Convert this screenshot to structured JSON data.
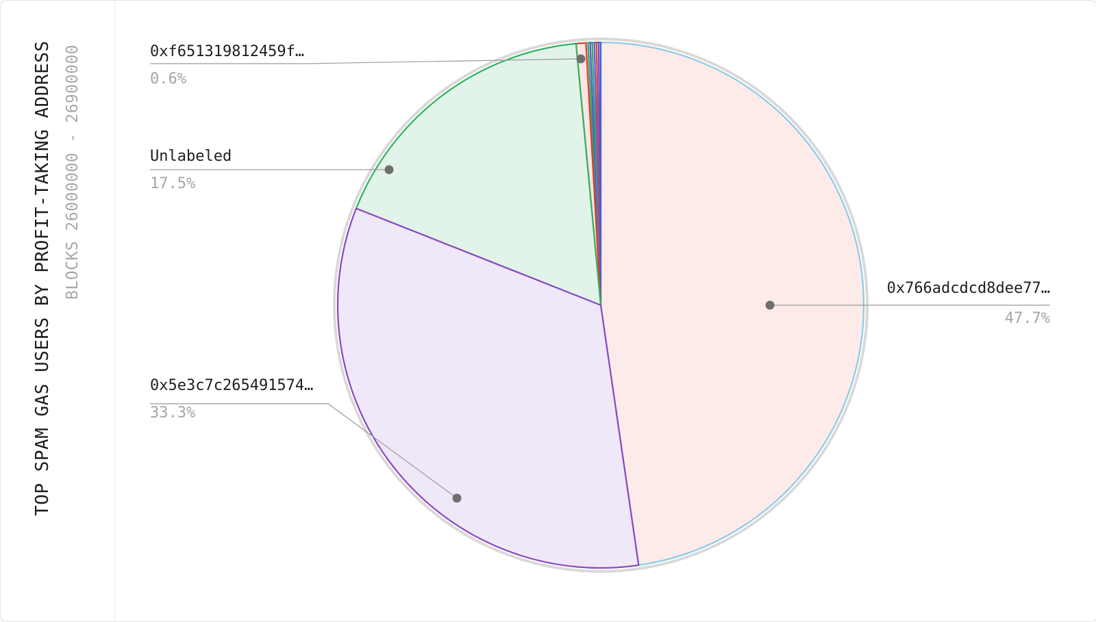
{
  "title": "TOP SPAM GAS USERS BY PROFIT-TAKING ADDRESS",
  "subtitle": "BLOCKS 26000000 - 26900000",
  "chart_data": {
    "type": "pie",
    "title": "TOP SPAM GAS USERS BY PROFIT-TAKING ADDRESS",
    "subtitle": "BLOCKS 26000000 - 26900000",
    "start_angle_deg": 0,
    "direction": "clockwise",
    "legend": "none",
    "slices": [
      {
        "label": "0x766adcdcd8dee77…",
        "pct": 47.7,
        "fill": "#fcebe8",
        "stroke": "#8ecae6"
      },
      {
        "label": "0x5e3c7c265491574…",
        "pct": 33.3,
        "fill": "#efe8f8",
        "stroke": "#8b48c2"
      },
      {
        "label": "Unlabeled",
        "pct": 17.5,
        "fill": "#e2f4e9",
        "stroke": "#2fb45e"
      },
      {
        "label": "0xf651319812459f…",
        "pct": 0.6,
        "fill": "#fbe6e4",
        "stroke": "#e03c31"
      },
      {
        "label": "",
        "pct": 0.13,
        "fill": "#eaf3fb",
        "stroke": "#7fb8e6"
      },
      {
        "label": "",
        "pct": 0.13,
        "fill": "#e7f5ec",
        "stroke": "#35a853"
      },
      {
        "label": "",
        "pct": 0.13,
        "fill": "#e9ecfa",
        "stroke": "#4a5fd0"
      },
      {
        "label": "",
        "pct": 0.13,
        "fill": "#e7f5ec",
        "stroke": "#2fa87e"
      },
      {
        "label": "",
        "pct": 0.13,
        "fill": "#f0eafa",
        "stroke": "#8a4fc8"
      },
      {
        "label": "",
        "pct": 0.13,
        "fill": "#fbe6e4",
        "stroke": "#d9453d"
      },
      {
        "label": "",
        "pct": 0.12,
        "fill": "#e9ecfa",
        "stroke": "#4a5fd0"
      }
    ],
    "annotations": [
      {
        "text": "0xf651319812459f…",
        "pct_text": "0.6%"
      },
      {
        "text": "Unlabeled",
        "pct_text": "17.5%"
      },
      {
        "text": "0x5e3c7c265491574…",
        "pct_text": "33.3%"
      },
      {
        "text": "0x766adcdcd8dee77…",
        "pct_text": "47.7%"
      }
    ],
    "colors": {
      "leader_line": "#9b9b9b",
      "marker_dot": "#6f6f6f",
      "outer_ring": "#d9d9d9",
      "label_text": "#1e1e1e",
      "pct_text": "#a5a5a5"
    }
  }
}
